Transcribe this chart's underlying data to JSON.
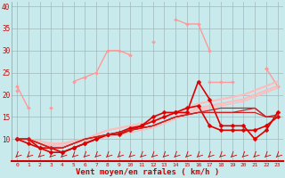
{
  "x": [
    0,
    1,
    2,
    3,
    4,
    5,
    6,
    7,
    8,
    9,
    10,
    11,
    12,
    13,
    14,
    15,
    16,
    17,
    18,
    19,
    20,
    21,
    22,
    23
  ],
  "bg": "#c8eaec",
  "grid_color": "#a0b8b8",
  "xlabel": "Vent moyen/en rafales ( km/h )",
  "lines": [
    {
      "y": [
        22,
        17,
        null,
        17,
        null,
        23,
        24,
        25,
        30,
        30,
        29,
        null,
        32,
        null,
        37,
        36,
        36,
        30,
        null,
        null,
        null,
        null,
        26,
        22
      ],
      "color": "#ff9999",
      "lw": 1.0,
      "marker": "D",
      "ms": 2.0
    },
    {
      "y": [
        21,
        null,
        null,
        null,
        null,
        null,
        null,
        null,
        null,
        null,
        null,
        null,
        null,
        null,
        null,
        null,
        null,
        23,
        23,
        23,
        null,
        null,
        26,
        null
      ],
      "color": "#ff9999",
      "lw": 1.0,
      "marker": "D",
      "ms": 2.0
    },
    {
      "y": [
        10,
        10,
        9.5,
        9,
        9,
        9.5,
        10,
        11,
        12,
        12.5,
        13,
        13.5,
        14,
        15,
        16,
        17,
        18,
        18.5,
        19,
        19.5,
        20,
        21,
        22,
        23
      ],
      "color": "#ffbbbb",
      "lw": 1.5,
      "marker": null,
      "ms": 0
    },
    {
      "y": [
        10,
        10,
        9,
        8.5,
        9,
        9.5,
        10,
        10.5,
        11,
        11.5,
        12,
        12.5,
        13,
        14,
        15,
        16,
        17,
        17.5,
        18,
        18.5,
        19,
        20,
        21,
        22
      ],
      "color": "#ffbbbb",
      "lw": 1.5,
      "marker": null,
      "ms": 0
    },
    {
      "y": [
        10,
        10,
        9,
        8,
        8.5,
        9,
        9.5,
        10,
        10.5,
        11,
        11.5,
        12,
        12.5,
        13.5,
        14.5,
        15.5,
        16.5,
        17,
        17.5,
        18,
        18.5,
        19.5,
        20.5,
        21.5
      ],
      "color": "#ffbbbb",
      "lw": 1.0,
      "marker": null,
      "ms": 0
    },
    {
      "y": [
        10,
        9,
        8,
        7,
        7,
        8,
        9,
        10,
        11,
        11,
        12,
        13,
        15,
        16,
        16,
        16,
        23,
        19,
        13,
        13,
        13,
        10,
        12,
        16
      ],
      "color": "#dd0000",
      "lw": 1.2,
      "marker": "D",
      "ms": 2.5
    },
    {
      "y": [
        10,
        10,
        8,
        8,
        7,
        8,
        9,
        10,
        11,
        11.5,
        12.5,
        13,
        14,
        15,
        16,
        17,
        17.5,
        13,
        12,
        12,
        12,
        12,
        13,
        15
      ],
      "color": "#dd0000",
      "lw": 1.2,
      "marker": "D",
      "ms": 2.5
    },
    {
      "y": [
        10,
        10,
        9,
        8,
        8,
        9,
        10,
        10.5,
        11,
        11.5,
        12,
        12.5,
        13,
        14,
        15,
        15.5,
        16,
        16,
        16,
        16,
        16,
        16,
        15,
        15
      ],
      "color": "#cc2222",
      "lw": 0.9,
      "marker": null,
      "ms": 0
    },
    {
      "y": [
        10,
        10,
        9,
        8,
        8,
        9,
        10,
        10.5,
        11,
        11.5,
        12,
        12.5,
        13,
        14,
        15,
        15.5,
        16,
        16,
        16,
        16,
        16.5,
        17,
        15,
        15
      ],
      "color": "#cc2222",
      "lw": 0.9,
      "marker": null,
      "ms": 0
    },
    {
      "y": [
        10,
        10,
        9,
        8,
        8,
        9,
        10,
        10.5,
        11,
        11.5,
        12,
        12.5,
        13,
        14,
        15,
        15.5,
        16,
        16.5,
        17,
        17,
        17,
        17,
        15,
        15.5
      ],
      "color": "#cc2222",
      "lw": 0.9,
      "marker": null,
      "ms": 0
    }
  ],
  "ylim": [
    5,
    41
  ],
  "yticks": [
    5,
    10,
    15,
    20,
    25,
    30,
    35,
    40
  ],
  "ytick_labels": [
    "",
    "10",
    "15",
    "20",
    "25",
    "30",
    "35",
    "40"
  ]
}
